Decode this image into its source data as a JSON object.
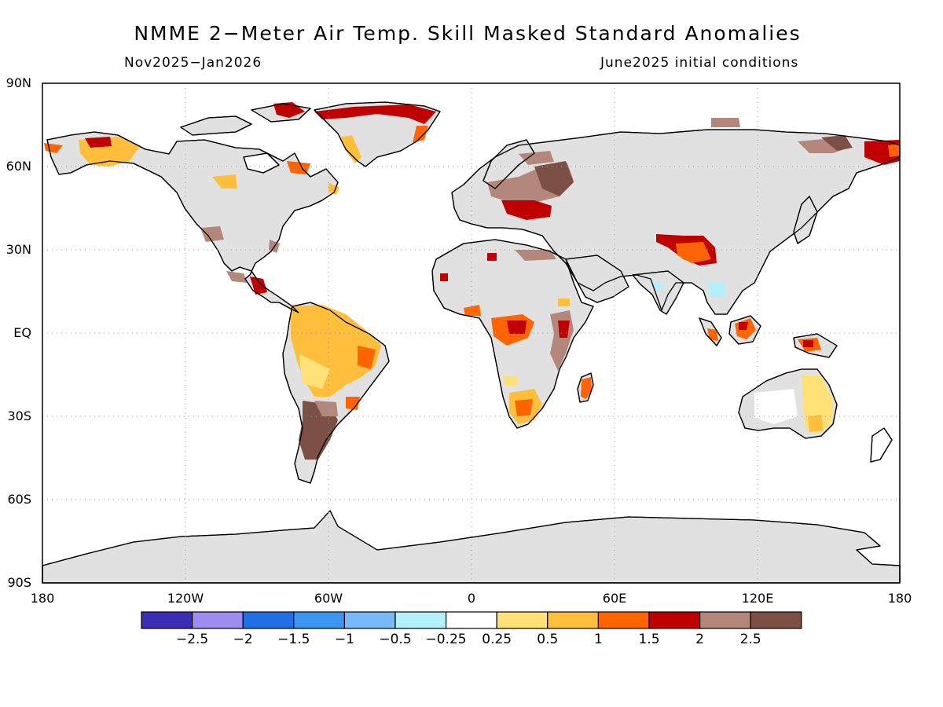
{
  "map": {
    "title": "NMME 2−Meter Air Temp. Skill Masked Standard Anomalies",
    "period": "Nov2025−Jan2026",
    "initial_conditions": "June2025 initial conditions",
    "lat_labels": [
      "90N",
      "60N",
      "30N",
      "EQ",
      "30S",
      "60S",
      "90S"
    ],
    "lon_labels": [
      "180",
      "120W",
      "60W",
      "0",
      "60E",
      "120E",
      "180"
    ],
    "land_masked_color": "#e1e1e1",
    "ocean_color": "#ffffff",
    "coastline_color": "#000000"
  },
  "colorbar": {
    "colors": [
      "#3c2eb4",
      "#a08cf0",
      "#1e6ee6",
      "#3c96f0",
      "#78b9fa",
      "#b4f0fa",
      "#ffffff",
      "#ffe178",
      "#ffbe3c",
      "#ff6400",
      "#c00000",
      "#b4877d",
      "#7d5046"
    ],
    "labels": [
      "−2.5",
      "−2",
      "−1.5",
      "−1",
      "−0.5",
      "−0.25",
      "0.25",
      "0.5",
      "1",
      "1.5",
      "2",
      "2.5"
    ]
  },
  "anomaly_regions": [
    {
      "name": "Greenland north rim",
      "category": "2"
    },
    {
      "name": "Greenland east coast",
      "category": "1.5"
    },
    {
      "name": "Alaska",
      "category": "1"
    },
    {
      "name": "Hudson Bay",
      "category": "1.5"
    },
    {
      "name": "Western Russia",
      "category": "2.5"
    },
    {
      "name": "Ukraine",
      "category": "2"
    },
    {
      "name": "Central Siberia",
      "category": "2.5"
    },
    {
      "name": "Far East Siberia",
      "category": "2"
    },
    {
      "name": "Tibet / Himalaya",
      "category": "1.5"
    },
    {
      "name": "Indochina",
      "category": "-0.5"
    },
    {
      "name": "Amazon",
      "category": "0.5"
    },
    {
      "name": "Southern South America",
      "category": "2.5"
    },
    {
      "name": "Congo",
      "category": "1.5"
    },
    {
      "name": "East Africa",
      "category": "2"
    },
    {
      "name": "Southern Africa",
      "category": "1"
    },
    {
      "name": "Madagascar",
      "category": "1"
    },
    {
      "name": "Borneo",
      "category": "1.5"
    },
    {
      "name": "New Guinea",
      "category": "1.5"
    },
    {
      "name": "Eastern Australia",
      "category": "0.5"
    }
  ]
}
